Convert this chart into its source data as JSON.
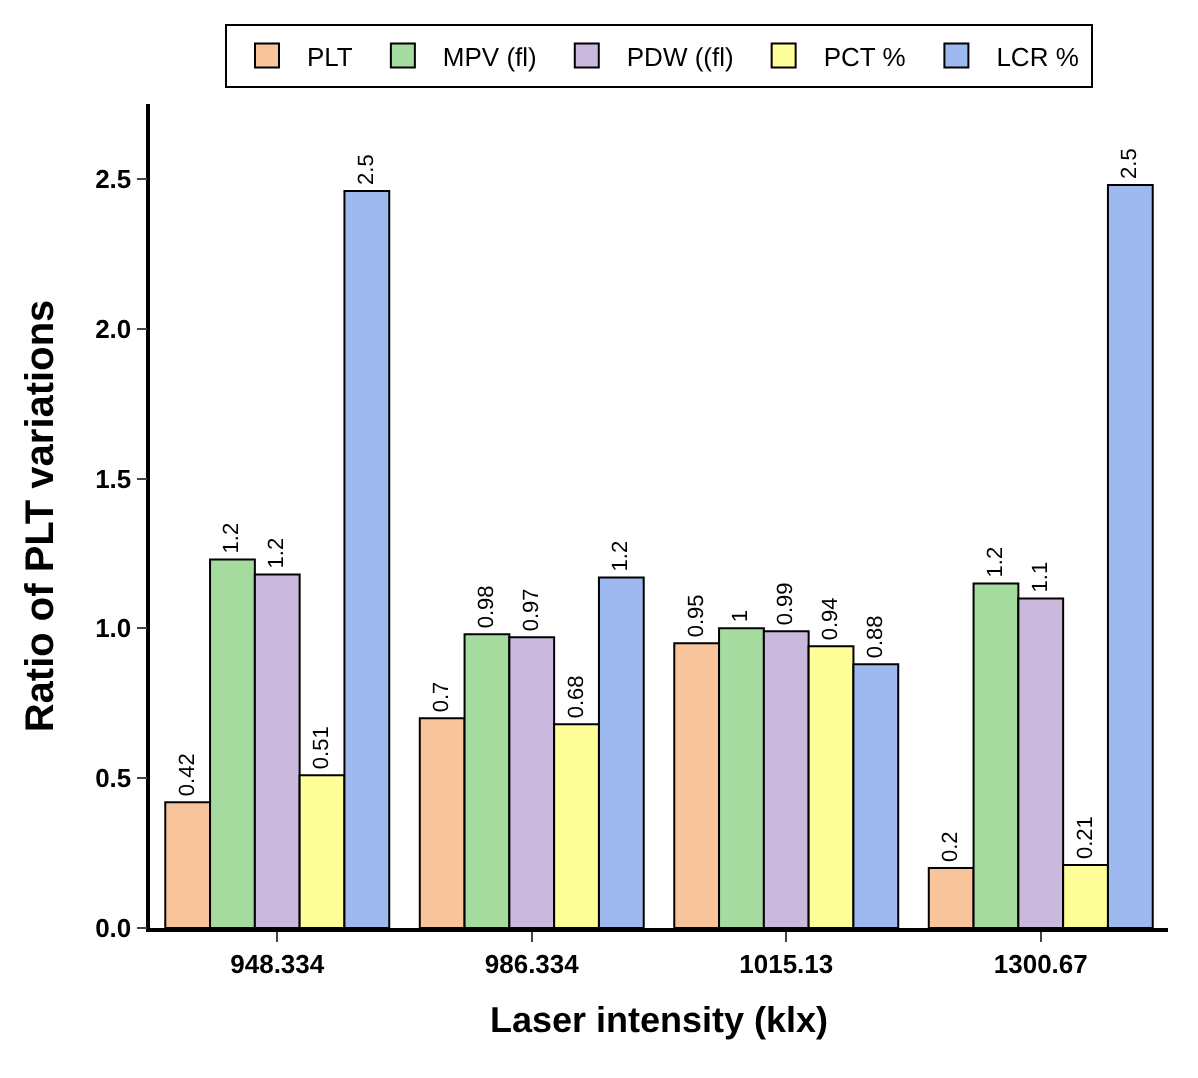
{
  "chart_data": {
    "type": "bar",
    "xlabel": "Laser intensity (klx)",
    "ylabel": "Ratio of PLT variations",
    "categories": [
      "948.334",
      "986.334",
      "1015.13",
      "1300.67"
    ],
    "series": [
      {
        "name": "PLT",
        "color": "#f8c49c",
        "values": [
          0.42,
          0.7,
          0.95,
          0.2
        ],
        "value_labels": [
          "0.42",
          "0.7",
          "0.95",
          "0.2"
        ]
      },
      {
        "name": "MPV (fl)",
        "color": "#a6dba0",
        "values": [
          1.23,
          0.98,
          1.0,
          1.15
        ],
        "value_labels": [
          "1.2",
          "0.98",
          "1",
          "1.2"
        ]
      },
      {
        "name": "PDW ((fl)",
        "color": "#cbb9dd",
        "values": [
          1.18,
          0.97,
          0.99,
          1.1
        ],
        "value_labels": [
          "1.2",
          "0.97",
          "0.99",
          "1.1"
        ]
      },
      {
        "name": "PCT %",
        "color": "#ffff99",
        "values": [
          0.51,
          0.68,
          0.94,
          0.21
        ],
        "value_labels": [
          "0.51",
          "0.68",
          "0.94",
          "0.21"
        ]
      },
      {
        "name": "LCR %",
        "color": "#9db9ef",
        "values": [
          2.46,
          1.17,
          0.88,
          2.48
        ],
        "value_labels": [
          "2.5",
          "1.2",
          "0.88",
          "2.5"
        ]
      }
    ],
    "ylim": [
      0,
      2.75
    ],
    "yticks": [
      {
        "value": 0,
        "label": "0.0"
      },
      {
        "value": 0.5,
        "label": "0.5"
      },
      {
        "value": 1,
        "label": "1.0"
      },
      {
        "value": 1.5,
        "label": "1.5"
      },
      {
        "value": 2,
        "label": "2.0"
      },
      {
        "value": 2.5,
        "label": "2.5"
      }
    ],
    "legend": "top"
  }
}
